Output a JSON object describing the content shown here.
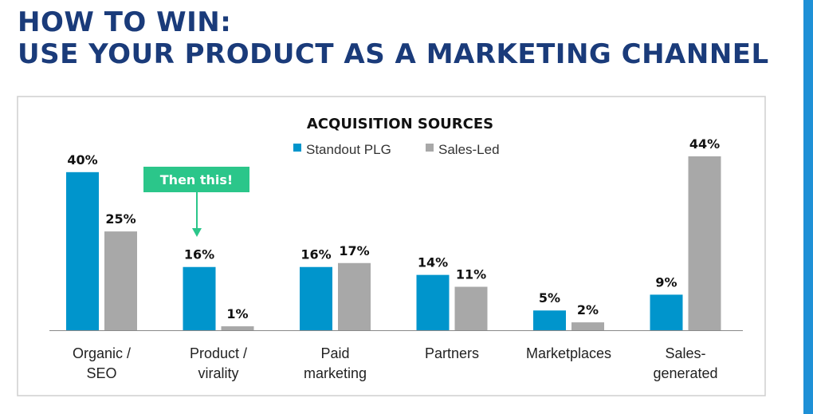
{
  "slide": {
    "title_line1": "HOW TO WIN:",
    "title_line2": "USE YOUR PRODUCT AS A MARKETING CHANNEL"
  },
  "colors": {
    "title": "#1a3b7a",
    "series_plg": "#0095cc",
    "series_sales": "#a8a8a8",
    "callout": "#2bc68a",
    "accent_stripe": "#1e90d6"
  },
  "callout": {
    "text": "Then this!",
    "category_index": 1
  },
  "chart_data": {
    "type": "bar",
    "title": "ACQUISITION SOURCES",
    "categories": [
      [
        "Organic /",
        "SEO"
      ],
      [
        "Product /",
        "virality"
      ],
      [
        "Paid",
        "marketing"
      ],
      [
        "Partners"
      ],
      [
        "Marketplaces"
      ],
      [
        "Sales-",
        "generated"
      ]
    ],
    "series": [
      {
        "name": "Standout PLG",
        "values": [
          40,
          16,
          16,
          14,
          5,
          9
        ],
        "labels": [
          "40%",
          "16%",
          "16%",
          "14%",
          "5%",
          "9%"
        ]
      },
      {
        "name": "Sales-Led",
        "values": [
          25,
          1,
          17,
          11,
          2,
          44
        ],
        "labels": [
          "25%",
          "1%",
          "17%",
          "11%",
          "2%",
          "44%"
        ]
      }
    ],
    "ylim": [
      0,
      45
    ],
    "grid": false,
    "legend": "top-center"
  }
}
